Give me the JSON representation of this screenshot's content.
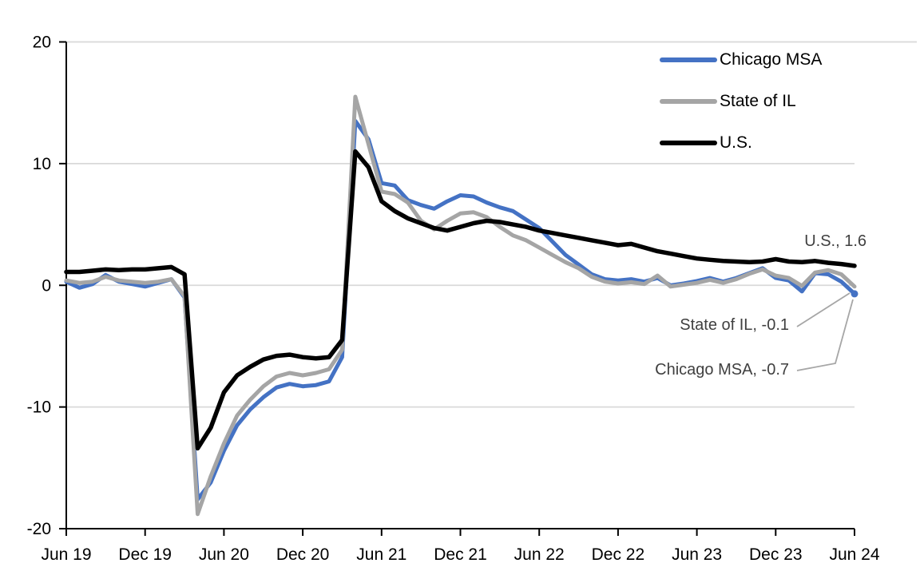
{
  "chart_data": {
    "type": "line",
    "x_tick_labels": [
      "Jun 19",
      "Dec 19",
      "Jun 20",
      "Dec 20",
      "Jun 21",
      "Dec 21",
      "Jun 22",
      "Dec 22",
      "Jun 23",
      "Dec 23",
      "Jun 24"
    ],
    "x_tick_indices": [
      0,
      6,
      12,
      18,
      24,
      30,
      36,
      42,
      48,
      54,
      60
    ],
    "x_start": "Jun 2019",
    "x_end": "Jun 2024",
    "x_frequency": "monthly",
    "y_ticks": [
      20,
      10,
      0,
      -10,
      -20
    ],
    "y_tick_labels": [
      "20",
      "10",
      "0",
      "-10",
      "-20"
    ],
    "ylim": [
      -20,
      20
    ],
    "grid": "horizontal",
    "legend_position": "top-right",
    "series": [
      {
        "name": "Chicago MSA",
        "color": "#4472C4",
        "values": [
          0.3,
          -0.2,
          0.1,
          0.85,
          0.3,
          0.1,
          -0.1,
          0.2,
          0.5,
          -1.0,
          -17.6,
          -16.2,
          -13.6,
          -11.5,
          -10.2,
          -9.2,
          -8.4,
          -8.1,
          -8.3,
          -8.2,
          -7.9,
          -5.9,
          13.5,
          12.0,
          8.4,
          8.2,
          7.0,
          6.6,
          6.3,
          6.9,
          7.4,
          7.3,
          6.8,
          6.4,
          6.1,
          5.4,
          4.7,
          3.6,
          2.5,
          1.7,
          0.9,
          0.5,
          0.4,
          0.5,
          0.3,
          0.6,
          0.0,
          0.15,
          0.35,
          0.6,
          0.3,
          0.6,
          1.0,
          1.4,
          0.6,
          0.4,
          -0.5,
          1.0,
          0.9,
          0.3,
          -0.7
        ]
      },
      {
        "name": "State of IL",
        "color": "#A5A5A5",
        "values": [
          0.4,
          0.2,
          0.3,
          0.7,
          0.4,
          0.3,
          0.2,
          0.3,
          0.5,
          -0.9,
          -18.8,
          -15.7,
          -13.0,
          -10.7,
          -9.4,
          -8.3,
          -7.5,
          -7.2,
          -7.4,
          -7.2,
          -6.9,
          -5.3,
          15.5,
          11.6,
          7.7,
          7.5,
          6.8,
          5.3,
          4.6,
          5.3,
          5.9,
          6.0,
          5.6,
          4.8,
          4.1,
          3.7,
          3.1,
          2.5,
          1.9,
          1.4,
          0.7,
          0.3,
          0.15,
          0.25,
          0.1,
          0.8,
          -0.1,
          0.05,
          0.2,
          0.45,
          0.2,
          0.5,
          0.95,
          1.3,
          0.8,
          0.6,
          -0.05,
          1.05,
          1.25,
          0.9,
          -0.1
        ]
      },
      {
        "name": "U.S.",
        "color": "#000000",
        "values": [
          1.1,
          1.1,
          1.2,
          1.3,
          1.25,
          1.3,
          1.3,
          1.4,
          1.5,
          0.9,
          -13.4,
          -11.7,
          -8.8,
          -7.4,
          -6.7,
          -6.1,
          -5.8,
          -5.7,
          -5.9,
          -6.0,
          -5.9,
          -4.5,
          11.0,
          9.7,
          6.9,
          6.1,
          5.5,
          5.1,
          4.7,
          4.5,
          4.8,
          5.1,
          5.3,
          5.2,
          5.0,
          4.8,
          4.5,
          4.3,
          4.1,
          3.9,
          3.7,
          3.5,
          3.3,
          3.4,
          3.1,
          2.8,
          2.6,
          2.4,
          2.2,
          2.1,
          2.0,
          1.95,
          1.9,
          1.95,
          2.15,
          1.95,
          1.9,
          2.0,
          1.85,
          1.75,
          1.6
        ]
      }
    ],
    "annotations": [
      {
        "text": "U.S., 1.6",
        "series": "U.S.",
        "value": 1.6
      },
      {
        "text": "State of IL, -0.1",
        "series": "State of IL",
        "value": -0.1
      },
      {
        "text": "Chicago MSA, -0.7",
        "series": "Chicago MSA",
        "value": -0.7
      }
    ],
    "end_marker": {
      "series": "Chicago MSA",
      "color": "#4472C4"
    }
  },
  "colors": {
    "gridline": "#D9D9D9",
    "axis": "#000000",
    "tick_label": "#000000",
    "annotation_text": "#404040",
    "leader_line": "#A6A6A6",
    "background": "#FFFFFF"
  }
}
